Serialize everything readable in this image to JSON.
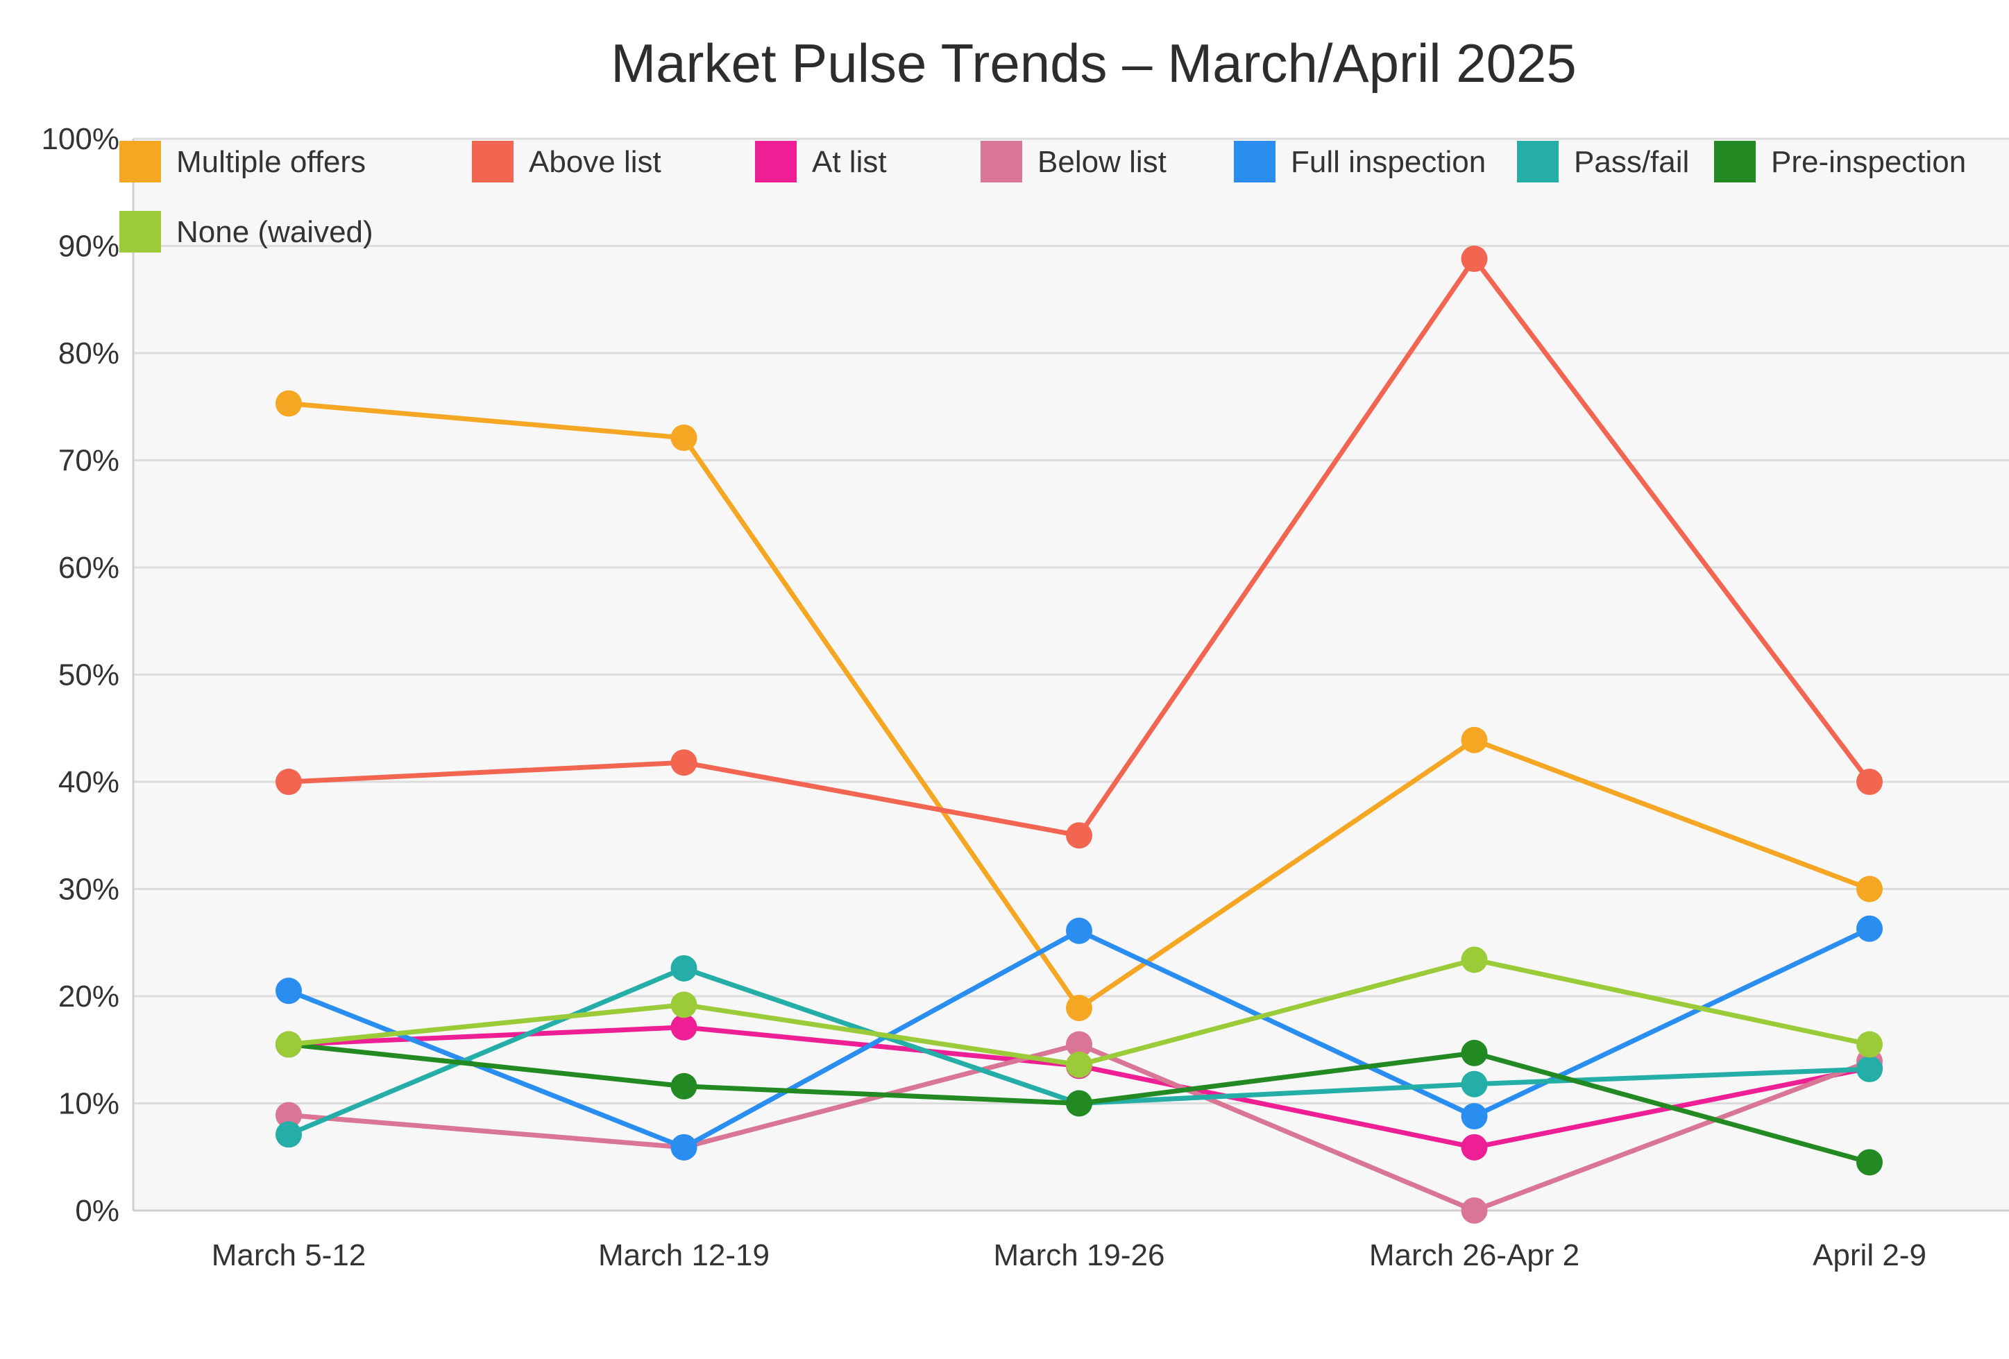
{
  "chart_data": {
    "type": "line",
    "title": "Market Pulse Trends – March/April 2025",
    "xlabel": "",
    "ylabel": "",
    "categories": [
      "March 5-12",
      "March 12-19",
      "March 19-26",
      "March 26-Apr 2",
      "April 2-9"
    ],
    "ylim": [
      0,
      100
    ],
    "yticks": [
      "0%",
      "10%",
      "20%",
      "30%",
      "40%",
      "50%",
      "60%",
      "70%",
      "80%",
      "90%",
      "100%"
    ],
    "grid": true,
    "legend_position": "top",
    "series": [
      {
        "name": "Multiple offers",
        "color": "#f5a623",
        "values": [
          75.3,
          72.1,
          18.9,
          43.9,
          30.0
        ]
      },
      {
        "name": "Above list",
        "color": "#f26651",
        "values": [
          40.0,
          41.8,
          35.0,
          88.8,
          40.0
        ]
      },
      {
        "name": "At list",
        "color": "#ee1f94",
        "values": [
          15.5,
          17.1,
          13.5,
          5.9,
          13.3
        ]
      },
      {
        "name": "Below list",
        "color": "#d97595",
        "values": [
          8.9,
          5.9,
          15.5,
          0.0,
          13.9
        ]
      },
      {
        "name": "Full inspection",
        "color": "#2a8ef0",
        "values": [
          20.5,
          5.9,
          26.1,
          8.8,
          26.3
        ]
      },
      {
        "name": "Pass/fail",
        "color": "#25aea8",
        "values": [
          7.1,
          22.6,
          10.0,
          11.8,
          13.2
        ]
      },
      {
        "name": "Pre-inspection",
        "color": "#238a23",
        "values": [
          15.5,
          11.6,
          10.0,
          14.7,
          4.5
        ]
      },
      {
        "name": "None (waived)",
        "color": "#9ccb3a",
        "values": [
          15.5,
          19.2,
          13.6,
          23.4,
          15.5
        ]
      }
    ]
  }
}
